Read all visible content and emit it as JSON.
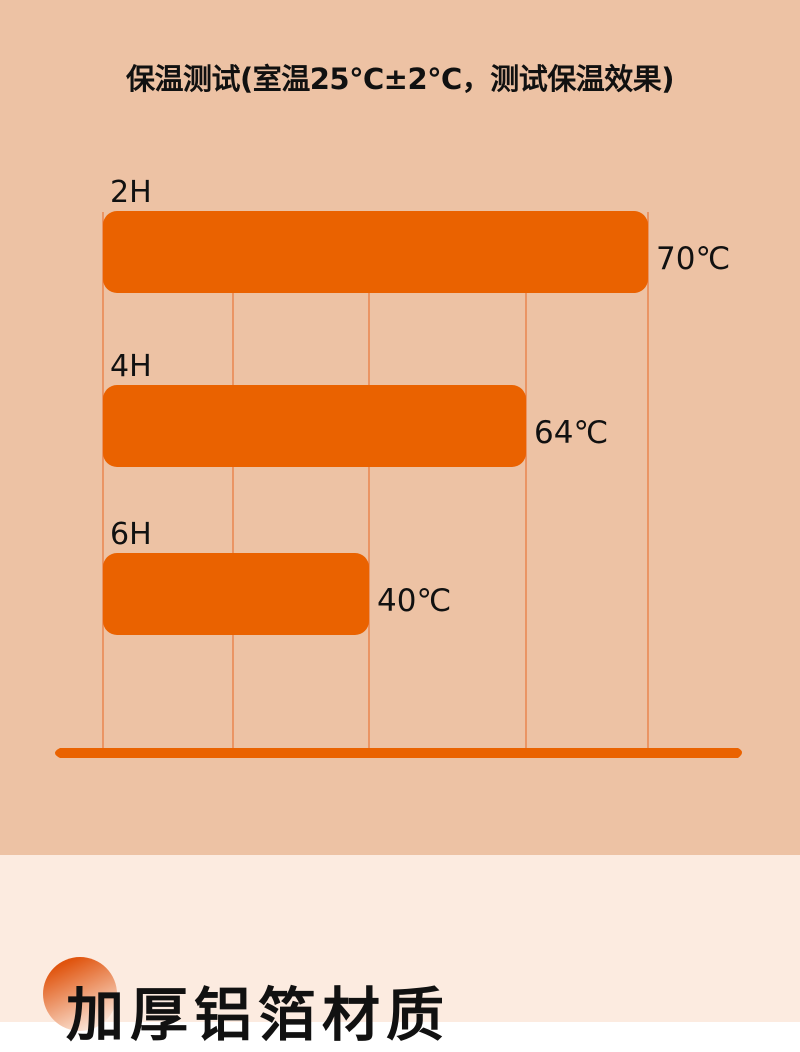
{
  "chart_data": {
    "type": "bar",
    "orientation": "horizontal",
    "title": "保温测试(室温25℃±2℃，测试保温效果)",
    "categories": [
      "2H",
      "4H",
      "6H"
    ],
    "values": [
      70,
      64,
      40
    ],
    "value_labels": [
      "70℃",
      "64℃",
      "40℃"
    ],
    "unit": "℃",
    "grid": true,
    "colors": {
      "bar": "#EA6200",
      "grid": "#E8773A",
      "background": "#EDC2A4"
    }
  },
  "section": {
    "heading": "加厚铝箔材质",
    "background": "#FCEBE0"
  }
}
